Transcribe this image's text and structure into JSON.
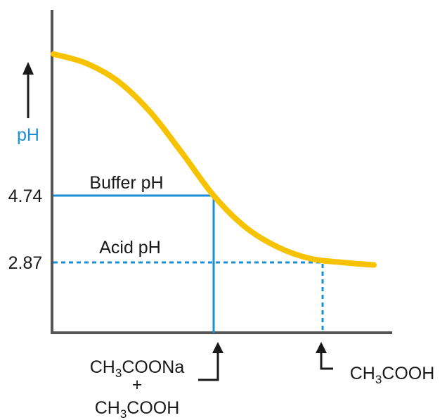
{
  "chart_data": {
    "type": "line",
    "ylabel": "pH",
    "y_ticks": [
      {
        "label": "4.74",
        "value": 4.74
      },
      {
        "label": "2.87",
        "value": 2.87
      }
    ],
    "series": [
      {
        "x": [
          0,
          10,
          20,
          30,
          40,
          50,
          60,
          70,
          80,
          90,
          100
        ],
        "y": [
          8.7,
          8.45,
          7.95,
          7.1,
          5.95,
          4.74,
          3.85,
          3.3,
          2.98,
          2.87,
          2.8
        ]
      }
    ],
    "annotations": {
      "buffer_label": "Buffer pH",
      "acid_label": "Acid pH",
      "buffer_x": 50,
      "acid_x": 84
    },
    "pointers": {
      "buffer_line1_a": "CH",
      "buffer_line1_sub": "3",
      "buffer_line1_b": "COONa",
      "plus": "+",
      "buffer_line3_a": "CH",
      "buffer_line3_sub": "3",
      "buffer_line3_b": "COOH",
      "acid_a": "CH",
      "acid_sub": "3",
      "acid_b": "COOH"
    },
    "colors": {
      "curve": "#f7c200",
      "guide": "#1a8fd6",
      "axis": "#555555",
      "text": "#1a1a1a"
    }
  }
}
